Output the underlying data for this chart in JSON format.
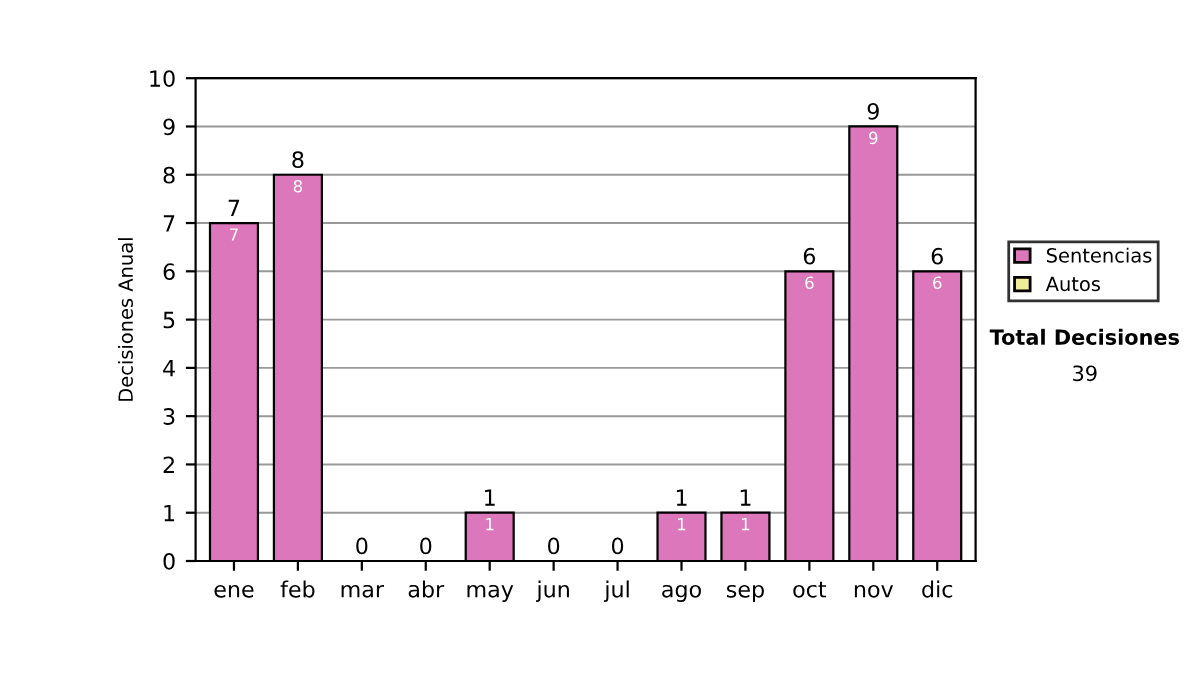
{
  "chart_data": {
    "type": "bar",
    "ylabel": "Decisiones Anual",
    "stacked": true,
    "categories": [
      "ene",
      "feb",
      "mar",
      "abr",
      "may",
      "jun",
      "jul",
      "ago",
      "sep",
      "oct",
      "nov",
      "dic"
    ],
    "series": [
      {
        "name": "Sentencias",
        "color": "#dd77bb",
        "values": [
          7,
          8,
          0,
          0,
          1,
          0,
          0,
          1,
          1,
          6,
          9,
          6
        ],
        "value_labels": [
          "7",
          "8",
          null,
          null,
          "1",
          null,
          null,
          "1",
          "1",
          "6",
          "9",
          "6"
        ]
      },
      {
        "name": "Autos",
        "color": "#eeee99",
        "values": [
          0,
          0,
          0,
          0,
          0,
          0,
          0,
          0,
          0,
          0,
          0,
          0
        ]
      }
    ],
    "totals": [
      "7",
      "8",
      "0",
      "0",
      "1",
      "0",
      "0",
      "1",
      "1",
      "6",
      "9",
      "6"
    ],
    "ylim": [
      0,
      10
    ],
    "yticks": [
      0,
      1,
      2,
      3,
      4,
      5,
      6,
      7,
      8,
      9,
      10
    ],
    "grid": "y",
    "legend": "right",
    "annotations": [
      "Total Decisiones",
      "39"
    ]
  }
}
